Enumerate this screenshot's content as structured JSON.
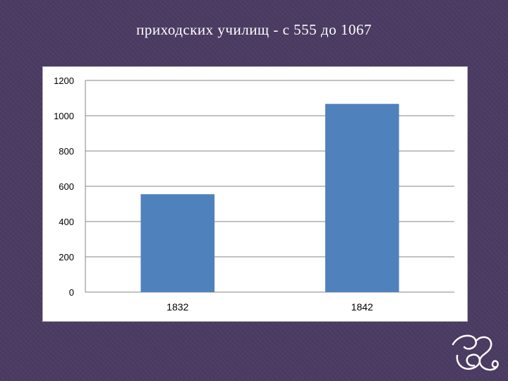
{
  "slide": {
    "title": "приходских училищ - с 555 до 1067"
  },
  "colors": {
    "background": "#4b3b63",
    "bar": "#4f81bd",
    "grid": "#868686",
    "text": "#000000"
  },
  "ornament_icon": "swirl-flourish-icon",
  "chart_data": {
    "type": "bar",
    "categories": [
      "1832",
      "1842"
    ],
    "values": [
      555,
      1067
    ],
    "title": "",
    "xlabel": "",
    "ylabel": "",
    "ylim": [
      0,
      1200
    ],
    "yticks": [
      0,
      200,
      400,
      600,
      800,
      1000,
      1200
    ],
    "grid": true,
    "legend": "none"
  }
}
